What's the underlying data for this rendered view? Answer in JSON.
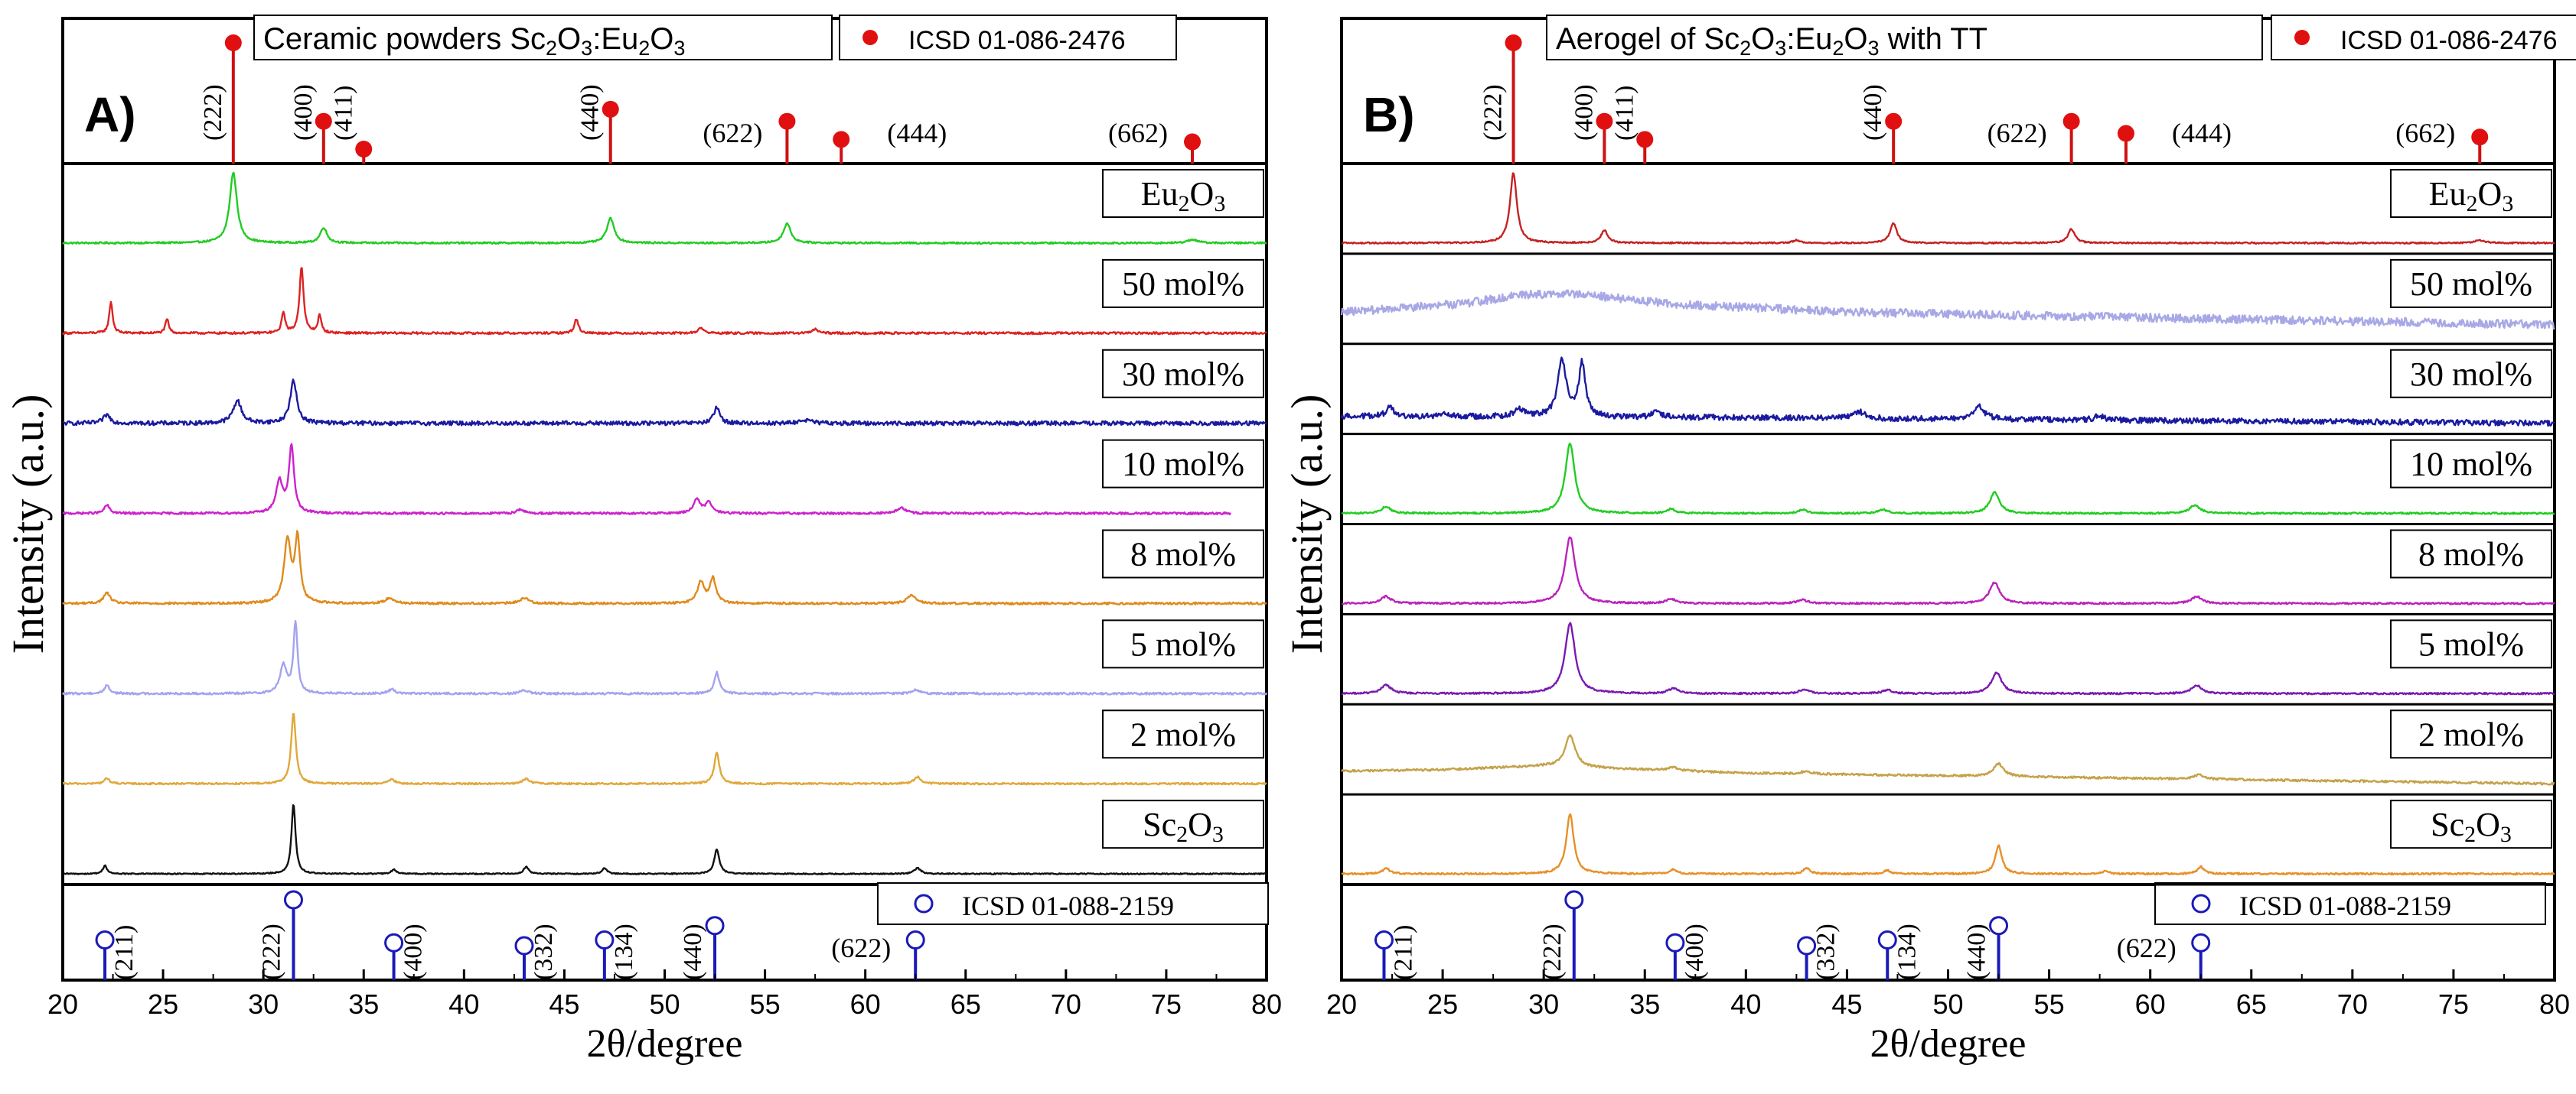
{
  "panels": [
    {
      "label": "A)",
      "title": "Ceramic powders Sc₂O₃:Eu₂O₃",
      "ylabel": "Intensity (a.u.)",
      "xlabel": "2θ/degree",
      "xticks": [
        "20",
        "25",
        "30",
        "35",
        "40",
        "45",
        "50",
        "55",
        "60",
        "65",
        "70",
        "75",
        "80"
      ],
      "top_ref": {
        "label": "ICSD 01-086-2476",
        "peaks": [
          {
            "hkl": "(222)",
            "x": 28.5,
            "h": 1.0
          },
          {
            "hkl": "(400)",
            "x": 33.0,
            "h": 0.35
          },
          {
            "hkl": "(411)",
            "x": 35.0,
            "h": 0.12
          },
          {
            "hkl": "(440)",
            "x": 47.3,
            "h": 0.45
          },
          {
            "hkl": "(622)",
            "x": 56.1,
            "h": 0.35
          },
          {
            "hkl": "(444)",
            "x": 58.8,
            "h": 0.2
          },
          {
            "hkl": "(662)",
            "x": 76.3,
            "h": 0.18
          }
        ]
      },
      "bottom_ref": {
        "label": "ICSD 01-088-2159",
        "peaks": [
          {
            "hkl": "(211)",
            "x": 22.1,
            "h": 0.3
          },
          {
            "hkl": "(222)",
            "x": 31.5,
            "h": 1.0
          },
          {
            "hkl": "(400)",
            "x": 36.5,
            "h": 0.25
          },
          {
            "hkl": "(332)",
            "x": 43.0,
            "h": 0.2
          },
          {
            "hkl": "(134)",
            "x": 47.0,
            "h": 0.3
          },
          {
            "hkl": "(440)",
            "x": 52.5,
            "h": 0.55
          },
          {
            "hkl": "(622)",
            "x": 62.5,
            "h": 0.3
          }
        ]
      },
      "series": [
        {
          "name": "Eu₂O₃",
          "color": "#22cc22",
          "noise": 0.012,
          "baseline": [],
          "peaks": [
            [
              28.5,
              1.0,
              0.22
            ],
            [
              33.0,
              0.22,
              0.2
            ],
            [
              47.3,
              0.35,
              0.22
            ],
            [
              56.1,
              0.28,
              0.22
            ],
            [
              76.3,
              0.05,
              0.3
            ]
          ]
        },
        {
          "name": "50 mol%",
          "color": "#dd2222",
          "noise": 0.015,
          "baseline": [],
          "peaks": [
            [
              22.4,
              0.45,
              0.1
            ],
            [
              25.2,
              0.2,
              0.1
            ],
            [
              31.0,
              0.3,
              0.1
            ],
            [
              31.9,
              0.95,
              0.12
            ],
            [
              32.8,
              0.25,
              0.1
            ],
            [
              45.6,
              0.2,
              0.12
            ],
            [
              51.8,
              0.08,
              0.15
            ],
            [
              57.5,
              0.06,
              0.15
            ]
          ]
        },
        {
          "name": "30 mol%",
          "color": "#1a1aa0",
          "noise": 0.03,
          "baseline": [],
          "peaks": [
            [
              22.2,
              0.12,
              0.2
            ],
            [
              28.7,
              0.32,
              0.25
            ],
            [
              31.5,
              0.6,
              0.2
            ],
            [
              52.6,
              0.22,
              0.18
            ],
            [
              57.0,
              0.05,
              0.3
            ]
          ]
        },
        {
          "name": "10 mol%",
          "color": "#cc22cc",
          "noise": 0.015,
          "baseline": [],
          "peaks": [
            [
              22.2,
              0.12,
              0.15
            ],
            [
              30.8,
              0.45,
              0.2
            ],
            [
              31.4,
              0.95,
              0.15
            ],
            [
              42.8,
              0.06,
              0.2
            ],
            [
              51.6,
              0.2,
              0.2
            ],
            [
              52.2,
              0.15,
              0.2
            ],
            [
              61.8,
              0.08,
              0.25
            ]
          ]
        },
        {
          "name": "8 mol%",
          "color": "#e08a1c",
          "noise": 0.015,
          "baseline": [],
          "peaks": [
            [
              22.2,
              0.15,
              0.2
            ],
            [
              31.2,
              0.9,
              0.2
            ],
            [
              31.7,
              0.9,
              0.15
            ],
            [
              36.3,
              0.08,
              0.25
            ],
            [
              43.0,
              0.08,
              0.25
            ],
            [
              51.8,
              0.3,
              0.2
            ],
            [
              52.4,
              0.35,
              0.18
            ],
            [
              62.3,
              0.12,
              0.25
            ]
          ]
        },
        {
          "name": "5 mol%",
          "color": "#a3a3ee",
          "noise": 0.015,
          "baseline": [],
          "peaks": [
            [
              22.2,
              0.12,
              0.15
            ],
            [
              31.0,
              0.4,
              0.2
            ],
            [
              31.6,
              1.0,
              0.12
            ],
            [
              36.4,
              0.06,
              0.2
            ],
            [
              43.0,
              0.05,
              0.2
            ],
            [
              52.6,
              0.3,
              0.15
            ],
            [
              62.5,
              0.06,
              0.2
            ]
          ]
        },
        {
          "name": "2 mol%",
          "color": "#e0a83a",
          "noise": 0.012,
          "baseline": [],
          "peaks": [
            [
              22.2,
              0.08,
              0.15
            ],
            [
              31.5,
              1.0,
              0.14
            ],
            [
              36.4,
              0.06,
              0.2
            ],
            [
              43.1,
              0.07,
              0.2
            ],
            [
              52.6,
              0.45,
              0.15
            ],
            [
              62.6,
              0.1,
              0.2
            ]
          ]
        },
        {
          "name": "Sc₂O₃",
          "color": "#111111",
          "noise": 0.008,
          "baseline": [],
          "peaks": [
            [
              22.1,
              0.12,
              0.12
            ],
            [
              31.5,
              1.0,
              0.12
            ],
            [
              36.5,
              0.06,
              0.15
            ],
            [
              43.1,
              0.1,
              0.15
            ],
            [
              47.0,
              0.08,
              0.15
            ],
            [
              52.6,
              0.35,
              0.15
            ],
            [
              62.6,
              0.08,
              0.2
            ]
          ]
        }
      ]
    },
    {
      "label": "B)",
      "title": "Aerogel of Sc₂O₃:Eu₂O₃  with TT",
      "ylabel": "Intensity (a.u.)",
      "xlabel": "2θ/degree",
      "xticks": [
        "20",
        "25",
        "30",
        "35",
        "40",
        "45",
        "50",
        "55",
        "60",
        "65",
        "70",
        "75",
        "80"
      ],
      "top_ref": {
        "label": "ICSD 01-086-2476",
        "peaks": [
          {
            "hkl": "(222)",
            "x": 28.5,
            "h": 1.0
          },
          {
            "hkl": "(400)",
            "x": 33.0,
            "h": 0.35
          },
          {
            "hkl": "(411)",
            "x": 35.0,
            "h": 0.2
          },
          {
            "hkl": "(440)",
            "x": 47.3,
            "h": 0.35
          },
          {
            "hkl": "(622)",
            "x": 56.1,
            "h": 0.35
          },
          {
            "hkl": "(444)",
            "x": 58.8,
            "h": 0.25
          },
          {
            "hkl": "(662)",
            "x": 76.3,
            "h": 0.22
          }
        ]
      },
      "bottom_ref": {
        "label": "ICSD 01-088-2159",
        "peaks": [
          {
            "hkl": "(211)",
            "x": 22.1,
            "h": 0.3
          },
          {
            "hkl": "(222)",
            "x": 31.5,
            "h": 1.0
          },
          {
            "hkl": "(400)",
            "x": 36.5,
            "h": 0.25
          },
          {
            "hkl": "(332)",
            "x": 43.0,
            "h": 0.2
          },
          {
            "hkl": "(134)",
            "x": 47.0,
            "h": 0.3
          },
          {
            "hkl": "(440)",
            "x": 52.5,
            "h": 0.55
          },
          {
            "hkl": "(622)",
            "x": 62.5,
            "h": 0.25
          }
        ]
      },
      "series": [
        {
          "name": "Eu₂O₃",
          "color": "#c42222",
          "noise": 0.01,
          "baseline": [],
          "peaks": [
            [
              28.5,
              1.0,
              0.2
            ],
            [
              33.0,
              0.18,
              0.2
            ],
            [
              42.5,
              0.04,
              0.2
            ],
            [
              47.3,
              0.28,
              0.2
            ],
            [
              56.1,
              0.2,
              0.2
            ],
            [
              76.3,
              0.04,
              0.3
            ]
          ]
        },
        {
          "name": "50 mol%",
          "color": "#a8a8e6",
          "noise": 0.06,
          "baseline": [
            [
              20,
              0.3
            ],
            [
              26,
              0.42
            ],
            [
              29,
              0.55
            ],
            [
              32,
              0.55
            ],
            [
              36,
              0.42
            ],
            [
              45,
              0.3
            ],
            [
              60,
              0.22
            ],
            [
              80,
              0.12
            ]
          ],
          "peaks": []
        },
        {
          "name": "30 mol%",
          "color": "#1a1aa0",
          "noise": 0.04,
          "baseline": [
            [
              20,
              0.1
            ],
            [
              40,
              0.08
            ],
            [
              80,
              0.0
            ]
          ],
          "peaks": [
            [
              22.4,
              0.15,
              0.2
            ],
            [
              25.0,
              0.05,
              0.2
            ],
            [
              28.8,
              0.1,
              0.3
            ],
            [
              30.9,
              0.8,
              0.25
            ],
            [
              31.9,
              0.75,
              0.2
            ],
            [
              35.6,
              0.08,
              0.25
            ],
            [
              45.6,
              0.1,
              0.3
            ],
            [
              51.5,
              0.18,
              0.35
            ],
            [
              57.5,
              0.06,
              0.3
            ]
          ]
        },
        {
          "name": "10 mol%",
          "color": "#22cc22",
          "noise": 0.012,
          "baseline": [],
          "peaks": [
            [
              22.2,
              0.1,
              0.25
            ],
            [
              31.3,
              1.0,
              0.28
            ],
            [
              36.3,
              0.06,
              0.25
            ],
            [
              42.8,
              0.05,
              0.25
            ],
            [
              46.8,
              0.05,
              0.3
            ],
            [
              52.3,
              0.3,
              0.28
            ],
            [
              62.2,
              0.12,
              0.3
            ]
          ]
        },
        {
          "name": "8 mol%",
          "color": "#bb22bb",
          "noise": 0.012,
          "baseline": [],
          "peaks": [
            [
              22.2,
              0.1,
              0.3
            ],
            [
              31.3,
              0.95,
              0.3
            ],
            [
              36.3,
              0.06,
              0.3
            ],
            [
              42.8,
              0.05,
              0.3
            ],
            [
              52.3,
              0.3,
              0.3
            ],
            [
              62.3,
              0.1,
              0.3
            ]
          ]
        },
        {
          "name": "5 mol%",
          "color": "#7a1ab0",
          "noise": 0.012,
          "baseline": [],
          "peaks": [
            [
              22.2,
              0.12,
              0.3
            ],
            [
              31.3,
              1.0,
              0.3
            ],
            [
              36.4,
              0.07,
              0.3
            ],
            [
              42.9,
              0.06,
              0.3
            ],
            [
              47.0,
              0.05,
              0.3
            ],
            [
              52.4,
              0.3,
              0.3
            ],
            [
              62.3,
              0.12,
              0.3
            ]
          ]
        },
        {
          "name": "2 mol%",
          "color": "#c4a24a",
          "noise": 0.015,
          "baseline": [
            [
              20,
              0.18
            ],
            [
              25,
              0.2
            ],
            [
              30,
              0.25
            ],
            [
              40,
              0.15
            ],
            [
              80,
              0.0
            ]
          ],
          "peaks": [
            [
              31.3,
              0.45,
              0.3
            ],
            [
              36.4,
              0.05,
              0.3
            ],
            [
              43.0,
              0.04,
              0.3
            ],
            [
              52.5,
              0.18,
              0.3
            ],
            [
              62.4,
              0.06,
              0.3
            ]
          ]
        },
        {
          "name": "Sc₂O₃",
          "color": "#e6902a",
          "noise": 0.012,
          "baseline": [],
          "peaks": [
            [
              22.2,
              0.08,
              0.2
            ],
            [
              31.3,
              0.85,
              0.22
            ],
            [
              36.4,
              0.06,
              0.2
            ],
            [
              43.0,
              0.08,
              0.2
            ],
            [
              47.0,
              0.05,
              0.2
            ],
            [
              52.5,
              0.4,
              0.2
            ],
            [
              57.8,
              0.04,
              0.2
            ],
            [
              62.5,
              0.1,
              0.2
            ]
          ]
        }
      ]
    }
  ]
}
